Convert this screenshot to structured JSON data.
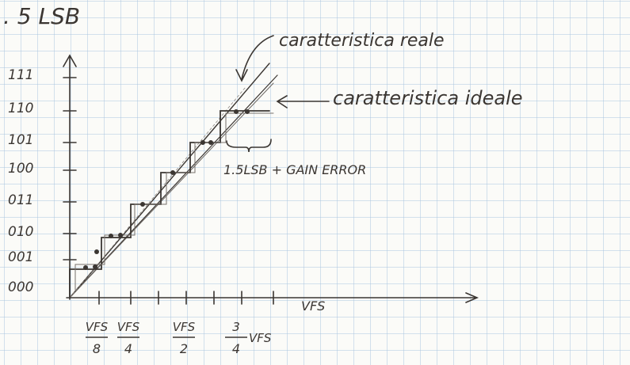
{
  "header": {
    "title": ". 5 LSB"
  },
  "labels": {
    "real": "caratteristica reale",
    "ideal": "caratteristica ideale",
    "annotation": "1.5LSB + GAIN ERROR"
  },
  "y_codes": [
    "111",
    "110",
    "101",
    "100",
    "011",
    "010",
    "001",
    "000"
  ],
  "x_labels": [
    {
      "num": "VFS",
      "den": "8"
    },
    {
      "num": "VFS",
      "den": "4"
    },
    {
      "num": "VFS",
      "den": "2"
    },
    {
      "num": "3",
      "den": "4",
      "suffix": "VFS"
    },
    {
      "text": "VFS"
    }
  ]
}
